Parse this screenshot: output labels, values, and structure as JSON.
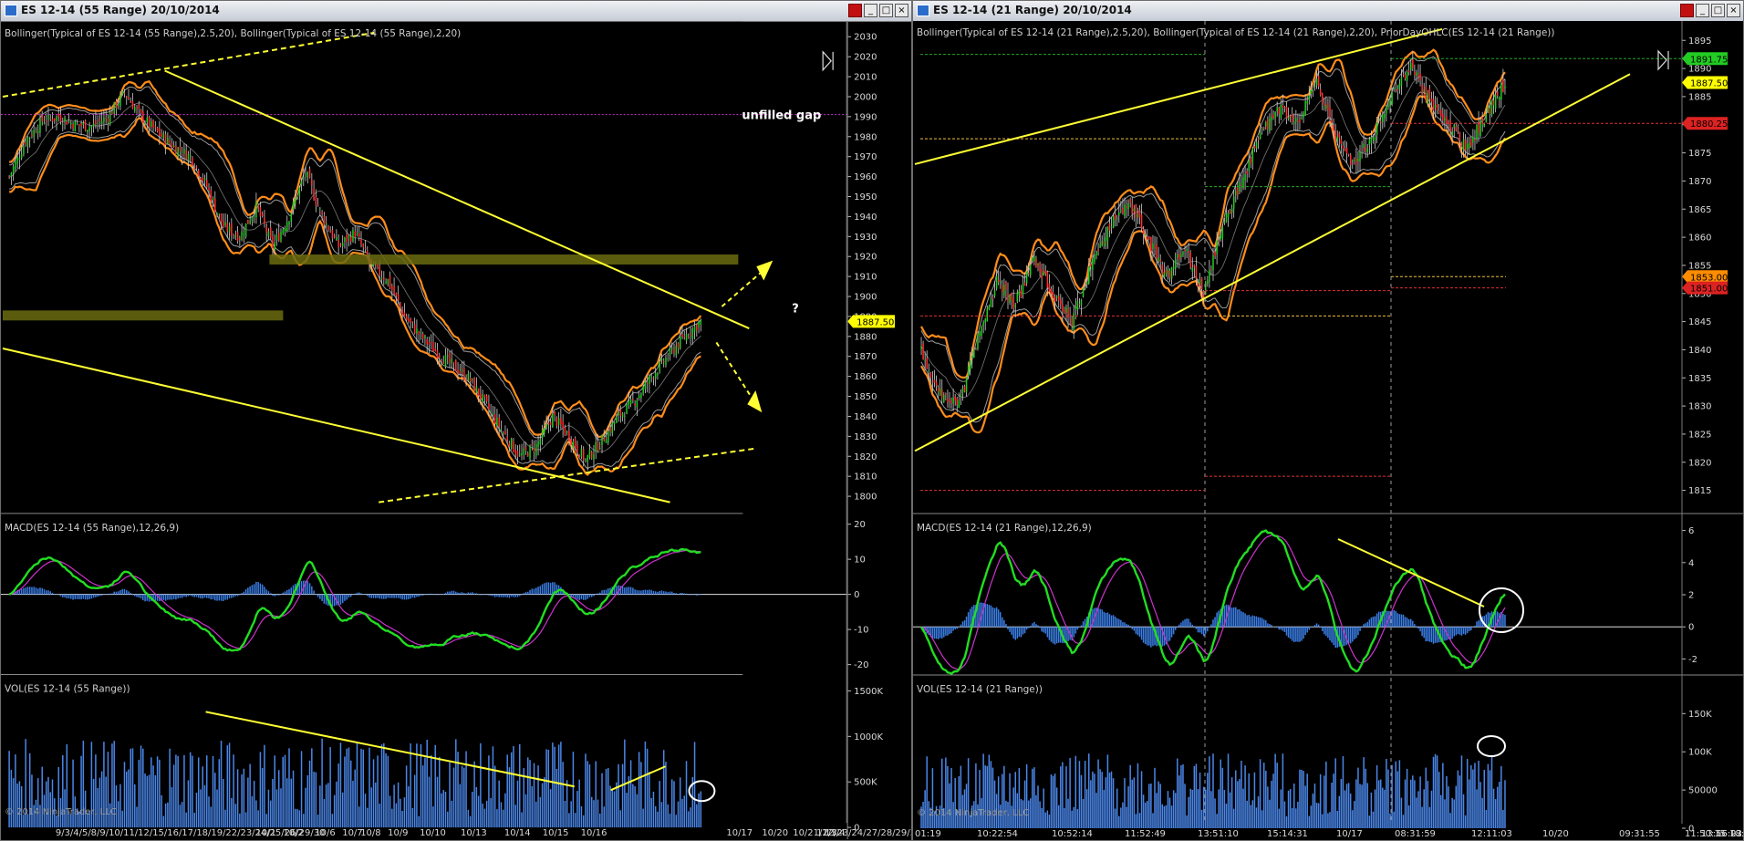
{
  "windows": [
    {
      "title": "ES 12-14 (55 Range)  20/10/2014",
      "buttons": {
        "close_color": "#c21010",
        "min": "_",
        "max": "□",
        "close": "×"
      },
      "price_panel": {
        "indicator_label": "Bollinger(Typical of ES 12-14 (55 Range),2.5,20), Bollinger(Typical of ES 12-14 (55 Range),2,20)",
        "annotations": [
          "unfilled gap",
          "?"
        ],
        "y_ticks": [
          2030,
          2020,
          2010,
          2000,
          1990,
          1980,
          1970,
          1960,
          1950,
          1940,
          1930,
          1920,
          1910,
          1900,
          1890,
          1880,
          1870,
          1860,
          1850,
          1840,
          1830,
          1820,
          1810,
          1800
        ],
        "ylim": [
          1796,
          2032
        ],
        "last_price": "1887.50"
      },
      "macd_panel": {
        "label": "MACD(ES 12-14 (55 Range),12,26,9)",
        "y_ticks": [
          20,
          10,
          0,
          -10,
          -20
        ],
        "ylim": [
          -21,
          21
        ]
      },
      "vol_panel": {
        "label": "VOL(ES 12-14 (55 Range))",
        "y_ticks": [
          "1500K",
          "1000K",
          "500K",
          "0"
        ],
        "ylim": [
          0,
          1550000
        ]
      },
      "x_labels": [
        "9/3/4/5/8/9/10/11/12/15/16/17/18/19/22/23/24/25/26/29/30",
        "10/1",
        "10/2",
        "10/6",
        "10/7",
        "10/8",
        "10/9",
        "10/10",
        "10/13",
        "10/14",
        "10/15",
        "10/16",
        "10/17",
        "10/20",
        "10/21/22/23/24/27/28/29/30/31",
        "11/3",
        "11/4"
      ],
      "copyright": "© 2014 NinjaTrader, LLC"
    },
    {
      "title": "ES 12-14 (21 Range)  20/10/2014",
      "buttons": {
        "close_color": "#c21010",
        "min": "_",
        "max": "□",
        "close": "×"
      },
      "price_panel": {
        "indicator_label": "Bollinger(Typical of ES 12-14 (21 Range),2.5,20), Bollinger(Typical of ES 12-14 (21 Range),2,20), PriorDayOHLC(ES 12-14 (21 Range))",
        "y_ticks": [
          1895,
          1890,
          1885,
          1880,
          1875,
          1870,
          1865,
          1860,
          1855,
          1850,
          1845,
          1840,
          1835,
          1830,
          1825,
          1820,
          1815
        ],
        "ylim": [
          1812.5,
          1896.5
        ],
        "price_tags": [
          {
            "value": "1891.75",
            "color": "#22cc22"
          },
          {
            "value": "1887.50",
            "color": "#ffff00"
          },
          {
            "value": "1880.25",
            "color": "#dd2222"
          },
          {
            "value": "1853.00",
            "color": "#ff8c00"
          },
          {
            "value": "1851.00",
            "color": "#dd2222"
          }
        ]
      },
      "macd_panel": {
        "label": "MACD(ES 12-14 (21 Range),12,26,9)",
        "y_ticks": [
          6,
          4,
          2,
          0,
          -2
        ],
        "ylim": [
          -2.6,
          6.6
        ]
      },
      "vol_panel": {
        "label": "VOL(ES 12-14 (21 Range))",
        "y_ticks": [
          "150K",
          "100K",
          "50000",
          "0"
        ],
        "ylim": [
          0,
          185000
        ]
      },
      "x_labels": [
        "01:19",
        "10:22:54",
        "10:52:14",
        "11:52:49",
        "13:51:10",
        "15:14:31",
        "10/17",
        "08:31:59",
        "12:11:03",
        "10/20",
        "09:31:55",
        "11:50:15",
        "13:56:23",
        "16:02:31",
        "18:53:39"
      ],
      "copyright": "© 2014 NinjaTrader, LLC"
    }
  ],
  "chart_data": [
    {
      "type": "candlestick",
      "title": "ES 12-14 (55 Range)  20/10/2014",
      "series": [
        {
          "name": "Bollinger(Typical of ES 12-14 (55 Range),2.5,20)",
          "color": "#ff8c1a"
        },
        {
          "name": "Bollinger(Typical of ES 12-14 (55 Range),2,20)",
          "color": "#999999"
        }
      ],
      "close_path": [
        [
          0,
          1960
        ],
        [
          8,
          1978
        ],
        [
          16,
          1988
        ],
        [
          24,
          1990
        ],
        [
          32,
          1986
        ],
        [
          40,
          1985
        ],
        [
          48,
          1990
        ],
        [
          56,
          2002
        ],
        [
          64,
          1990
        ],
        [
          72,
          1982
        ],
        [
          80,
          1975
        ],
        [
          88,
          1970
        ],
        [
          96,
          1955
        ],
        [
          104,
          1935
        ],
        [
          112,
          1930
        ],
        [
          120,
          1945
        ],
        [
          128,
          1925
        ],
        [
          136,
          1940
        ],
        [
          144,
          1962
        ],
        [
          152,
          1940
        ],
        [
          160,
          1925
        ],
        [
          168,
          1932
        ],
        [
          176,
          1915
        ],
        [
          184,
          1908
        ],
        [
          192,
          1890
        ],
        [
          200,
          1880
        ],
        [
          208,
          1872
        ],
        [
          216,
          1865
        ],
        [
          224,
          1858
        ],
        [
          232,
          1845
        ],
        [
          240,
          1832
        ],
        [
          248,
          1820
        ],
        [
          256,
          1825
        ],
        [
          264,
          1840
        ],
        [
          272,
          1830
        ],
        [
          280,
          1818
        ],
        [
          288,
          1828
        ],
        [
          296,
          1840
        ],
        [
          304,
          1848
        ],
        [
          312,
          1860
        ],
        [
          320,
          1870
        ],
        [
          328,
          1880
        ],
        [
          336,
          1887.5
        ]
      ],
      "last_price": 1887.5,
      "ylim": [
        1796,
        2032
      ]
    },
    {
      "type": "candlestick",
      "title": "ES 12-14 (21 Range)  20/10/2014",
      "series": [
        {
          "name": "Bollinger(Typical of ES 12-14 (21 Range),2.5,20)",
          "color": "#ff8c1a"
        },
        {
          "name": "Bollinger(Typical of ES 12-14 (21 Range),2,20)",
          "color": "#999999"
        },
        {
          "name": "PriorDayOHLC(ES 12-14 (21 Range))"
        }
      ],
      "close_path": [
        [
          0,
          1840
        ],
        [
          10,
          1832
        ],
        [
          20,
          1830
        ],
        [
          30,
          1842
        ],
        [
          40,
          1852
        ],
        [
          50,
          1848
        ],
        [
          60,
          1856
        ],
        [
          70,
          1850
        ],
        [
          80,
          1845
        ],
        [
          90,
          1855
        ],
        [
          100,
          1862
        ],
        [
          110,
          1866
        ],
        [
          120,
          1860
        ],
        [
          130,
          1853
        ],
        [
          140,
          1858
        ],
        [
          150,
          1850
        ],
        [
          160,
          1862
        ],
        [
          170,
          1870
        ],
        [
          180,
          1878
        ],
        [
          190,
          1883
        ],
        [
          200,
          1880
        ],
        [
          210,
          1888
        ],
        [
          220,
          1878
        ],
        [
          230,
          1873
        ],
        [
          240,
          1878
        ],
        [
          250,
          1886
        ],
        [
          260,
          1890
        ],
        [
          270,
          1884
        ],
        [
          280,
          1880
        ],
        [
          290,
          1876
        ],
        [
          300,
          1882
        ],
        [
          310,
          1887.5
        ]
      ],
      "price_lines": [
        1891.75,
        1887.5,
        1880.25,
        1853.0,
        1851.0
      ],
      "ylim": [
        1812.5,
        1896.5
      ]
    }
  ]
}
